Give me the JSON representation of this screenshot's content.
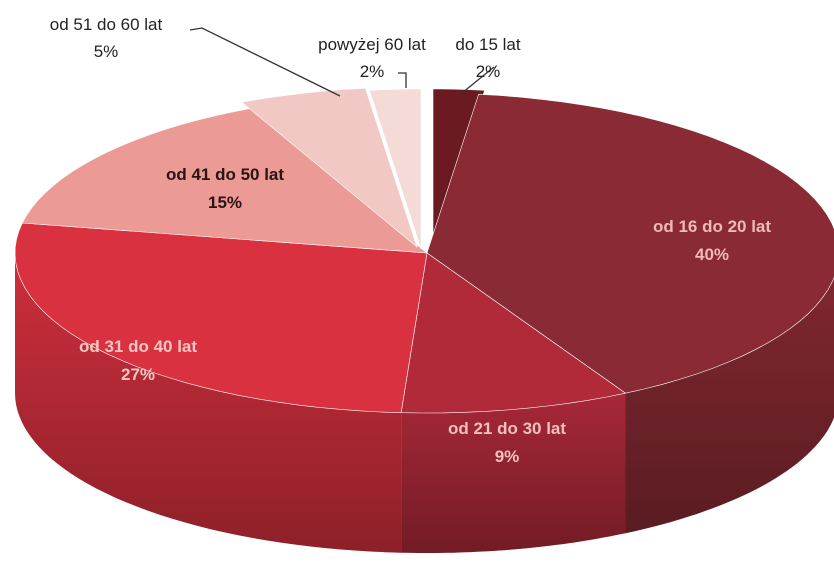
{
  "chart_data": {
    "type": "pie",
    "title": "",
    "categories": [
      "do 15 lat",
      "od 16 do 20 lat",
      "od 21 do 30 lat",
      "od 31 do 40 lat",
      "od 41 do 50 lat",
      "od 51 do 60 lat",
      "powyżej 60 lat"
    ],
    "values": [
      2,
      40,
      9,
      27,
      15,
      5,
      2
    ],
    "labels": [
      "2%",
      "40%",
      "9%",
      "27%",
      "15%",
      "5%",
      "2%"
    ],
    "colors": {
      "do 15 lat": "#6a1a20",
      "od 16 do 20 lat": "#8a2a34",
      "od 21 do 30 lat": "#b02a3a",
      "od 31 do 40 lat": "#d9313f",
      "od 41 do 50 lat": "#ec9a95",
      "od 51 do 60 lat": "#f1c8c4",
      "powyżej 60 lat": "#f4dbd8"
    },
    "legend": "none",
    "style": "3d-exploded"
  }
}
